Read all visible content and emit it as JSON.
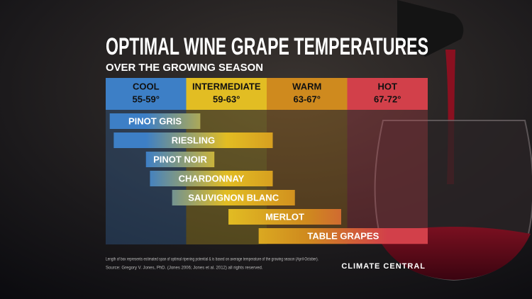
{
  "chart_data": {
    "type": "range-bar",
    "title": "OPTIMAL WINE GRAPE TEMPERATURES",
    "subtitle": "OVER THE GROWING SEASON",
    "zones": [
      {
        "name": "COOL",
        "label": "55-59°",
        "from": 55,
        "to": 59,
        "color": "#3d7fc6"
      },
      {
        "name": "INTERMEDIATE",
        "label": "59-63°",
        "from": 59,
        "to": 63,
        "color": "#e2bd23"
      },
      {
        "name": "WARM",
        "label": "63-67°",
        "from": 63,
        "to": 67,
        "color": "#cf8a1e"
      },
      {
        "name": "HOT",
        "label": "67-72°",
        "from": 67,
        "to": 72,
        "color": "#d2404a"
      }
    ],
    "categories": [
      "PINOT GRIS",
      "RIESLING",
      "PINOT NOIR",
      "CHARDONNAY",
      "SAUVIGNON BLANC",
      "MERLOT",
      "TABLE GRAPES"
    ],
    "low": [
      55.2,
      55.4,
      57.0,
      57.2,
      58.3,
      61.1,
      62.6
    ],
    "high": [
      59.7,
      63.3,
      60.4,
      63.3,
      64.4,
      66.7,
      72
    ],
    "note": "Length of box represents estimated span of optimal ripening potential & is based on average temperature of the growing season (April-October).",
    "source": "Source: Gregory V. Jones, PhD. (Jones 2006; Jones et al. 2012) all rights reserved.",
    "logo": "CLIMATE CENTRAL"
  }
}
